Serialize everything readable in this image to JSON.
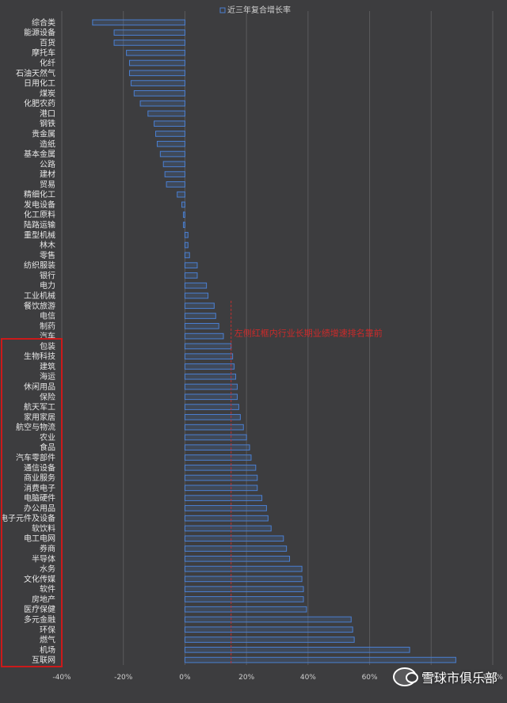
{
  "chart_data": {
    "type": "bar",
    "orientation": "horizontal",
    "legend": "近三年复合增长率",
    "legend_position": "top",
    "annotation": "左侧红框内行业长期业绩增速排名靠前",
    "reference_line": 15,
    "categories": [
      "综合类",
      "能源设备",
      "百货",
      "摩托车",
      "化纤",
      "石油天然气",
      "日用化工",
      "煤炭",
      "化肥农药",
      "港口",
      "钢铁",
      "贵金属",
      "造纸",
      "基本金属",
      "公路",
      "建材",
      "贸易",
      "精细化工",
      "发电设备",
      "化工原料",
      "陆路运输",
      "重型机械",
      "林木",
      "零售",
      "纺织服装",
      "银行",
      "电力",
      "工业机械",
      "餐饮旅游",
      "电信",
      "制药",
      "汽车",
      "包装",
      "生物科技",
      "建筑",
      "海运",
      "休闲用品",
      "保险",
      "航天军工",
      "家用家居",
      "航空与物流",
      "农业",
      "食品",
      "汽车零部件",
      "通信设备",
      "商业服务",
      "消费电子",
      "电脑硬件",
      "办公用品",
      "电子元件及设备",
      "软饮料",
      "电工电网",
      "券商",
      "半导体",
      "水务",
      "文化传媒",
      "软件",
      "房地产",
      "医疗保健",
      "多元金融",
      "环保",
      "燃气",
      "机场",
      "互联网"
    ],
    "values": [
      -30,
      -23,
      -23,
      -19,
      -18,
      -18,
      -17.5,
      -16.5,
      -14.5,
      -12,
      -10,
      -9.5,
      -9,
      -8,
      -7,
      -6.5,
      -6,
      -2.5,
      -1,
      -0.5,
      -0.5,
      1,
      1,
      1.5,
      4,
      4,
      7,
      7.5,
      9.5,
      10,
      11,
      12.5,
      15,
      15.5,
      16,
      16.5,
      17,
      17,
      17.5,
      18,
      19,
      20,
      21,
      21.5,
      23,
      23.5,
      23.5,
      25,
      26.5,
      27,
      28,
      32,
      33,
      34,
      38,
      38,
      38.5,
      38.5,
      39.5,
      54,
      54.5,
      55,
      73,
      88
    ],
    "x_ticks": [
      "-40%",
      "-20%",
      "0%",
      "20%",
      "40%",
      "60%",
      "80%",
      "100%"
    ],
    "xlim": [
      -40,
      100
    ],
    "grid": true,
    "bar_color": "#4a7fd1",
    "highlight_box_color": "#cc1a1a",
    "highlight_range": [
      "包装",
      "互联网"
    ],
    "watermark": "雪球市俱乐部"
  }
}
